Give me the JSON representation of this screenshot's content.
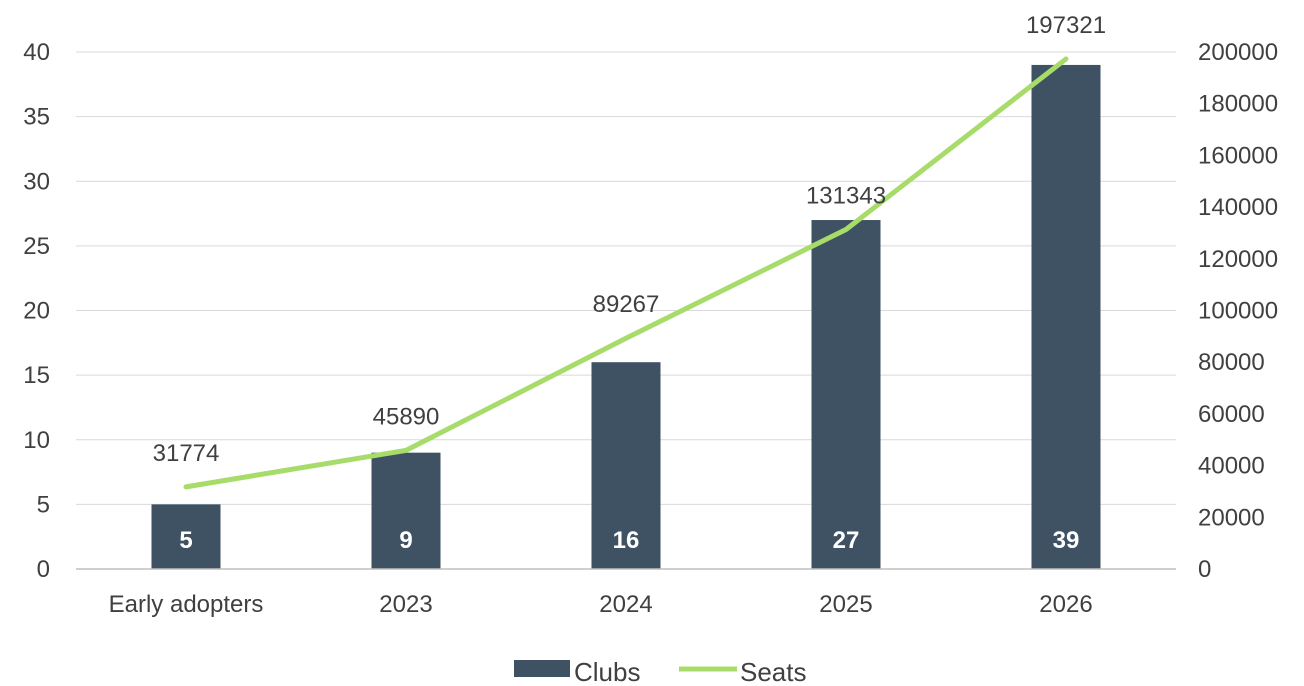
{
  "chart_data": {
    "type": "bar",
    "categories": [
      "Early adopters",
      "2023",
      "2024",
      "2025",
      "2026"
    ],
    "series": [
      {
        "name": "Clubs",
        "type": "bar",
        "axis": "left",
        "values": [
          5,
          9,
          16,
          27,
          39
        ],
        "color": "#3f5263"
      },
      {
        "name": "Seats",
        "type": "line",
        "axis": "right",
        "values": [
          31774,
          45890,
          89267,
          131343,
          197321
        ],
        "color": "#a8dc6a"
      }
    ],
    "y_left": {
      "ylim": [
        0,
        40
      ],
      "ticks": [
        0,
        5,
        10,
        15,
        20,
        25,
        30,
        35,
        40
      ]
    },
    "y_right": {
      "ylim": [
        0,
        200000
      ],
      "ticks": [
        0,
        20000,
        40000,
        60000,
        80000,
        100000,
        120000,
        140000,
        160000,
        180000,
        200000
      ]
    },
    "grid": true,
    "legend": "bottom-center",
    "title": "",
    "xlabel": "",
    "ylabel": ""
  }
}
